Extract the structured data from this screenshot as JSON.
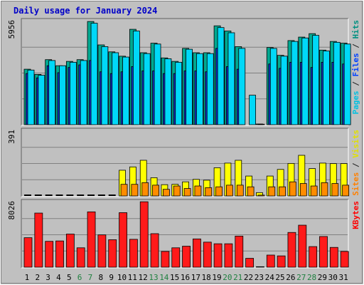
{
  "chart_data": {
    "type": "bar",
    "title": "Daily usage for January 2024",
    "days": [
      "1",
      "2",
      "3",
      "4",
      "5",
      "6",
      "7",
      "8",
      "9",
      "10",
      "11",
      "12",
      "13",
      "14",
      "15",
      "16",
      "17",
      "18",
      "19",
      "20",
      "21",
      "22",
      "23",
      "24",
      "25",
      "26",
      "27",
      "28",
      "29",
      "30",
      "31"
    ],
    "weekend_days": [
      "6",
      "7",
      "13",
      "14",
      "20",
      "21",
      "27",
      "28"
    ],
    "panels": [
      {
        "id": "hits",
        "ylim": [
          0,
          5956
        ],
        "ymax_label": "5956",
        "right_label": [
          {
            "text": "Pages",
            "color": "#00c0e0"
          },
          {
            "text": " / ",
            "color": "#202020"
          },
          {
            "text": "Files",
            "color": "#0040ff"
          },
          {
            "text": " / ",
            "color": "#202020"
          },
          {
            "text": "Hits",
            "color": "#009080"
          }
        ],
        "series": [
          {
            "name": "Hits",
            "color": "#00a890",
            "values": [
              3200,
              2900,
              3750,
              3400,
              3650,
              3750,
              5950,
              4600,
              4200,
              3950,
              5500,
              4150,
              4700,
              3850,
              3650,
              4400,
              4150,
              4150,
              5700,
              5400,
              4500,
              0,
              40,
              4450,
              4000,
              4850,
              5050,
              5250,
              4300,
              4800,
              4700
            ]
          },
          {
            "name": "Files",
            "color": "#1030c0",
            "values": [
              2950,
              2700,
              3400,
              3000,
              3300,
              3450,
              3700,
              3050,
              2950,
              3050,
              3350,
              3100,
              3100,
              2950,
              2950,
              3100,
              3100,
              3050,
              4400,
              3350,
              3200,
              0,
              30,
              3500,
              3250,
              3600,
              3600,
              3300,
              3600,
              3600,
              3500
            ]
          },
          {
            "name": "Pages",
            "color": "#00d8f8",
            "values": [
              3150,
              2850,
              3700,
              3400,
              3600,
              3700,
              5850,
              4500,
              4150,
              3900,
              5400,
              4100,
              4650,
              3800,
              3600,
              4350,
              4100,
              4100,
              5600,
              5300,
              4400,
              1700,
              0,
              4400,
              3950,
              4800,
              5000,
              5150,
              4250,
              4750,
              4650
            ]
          }
        ]
      },
      {
        "id": "visits",
        "ylim": [
          0,
          391
        ],
        "ymax_label": "391",
        "right_label": [
          {
            "text": "Sites",
            "color": "#ff8000"
          },
          {
            "text": " / ",
            "color": "#202020"
          },
          {
            "text": "Visits",
            "color": "#e0e000"
          }
        ],
        "series": [
          {
            "name": "Visits",
            "color": "#ffff00",
            "values": [
              0,
              0,
              0,
              0,
              0,
              0,
              0,
              0,
              0,
              155,
              175,
              215,
              110,
              68,
              70,
              85,
              100,
              95,
              170,
              198,
              215,
              120,
              20,
              120,
              160,
              196,
              245,
              165,
              198,
              195,
              195
            ]
          },
          {
            "name": "Sites",
            "color": "#ff8c00",
            "values": [
              0,
              0,
              0,
              0,
              0,
              0,
              0,
              0,
              0,
              70,
              70,
              80,
              65,
              40,
              60,
              45,
              60,
              50,
              55,
              65,
              65,
              55,
              5,
              55,
              55,
              85,
              75,
              60,
              80,
              75,
              65
            ]
          }
        ]
      },
      {
        "id": "kbytes",
        "ylim": [
          0,
          8026
        ],
        "ymax_label": "8026",
        "right_label": [
          {
            "text": "KBytes",
            "color": "#ff0000"
          }
        ],
        "series": [
          {
            "name": "KBytes",
            "color": "#ff1a1a",
            "values": [
              3650,
              6700,
              3200,
              3250,
              4100,
              2400,
              6850,
              4000,
              3400,
              6750,
              3450,
              8100,
              4150,
              1950,
              2400,
              2600,
              3500,
              3100,
              2900,
              2900,
              3850,
              1100,
              60,
              1500,
              1400,
              4300,
              5200,
              2550,
              3800,
              2450,
              1950
            ]
          }
        ]
      }
    ]
  }
}
